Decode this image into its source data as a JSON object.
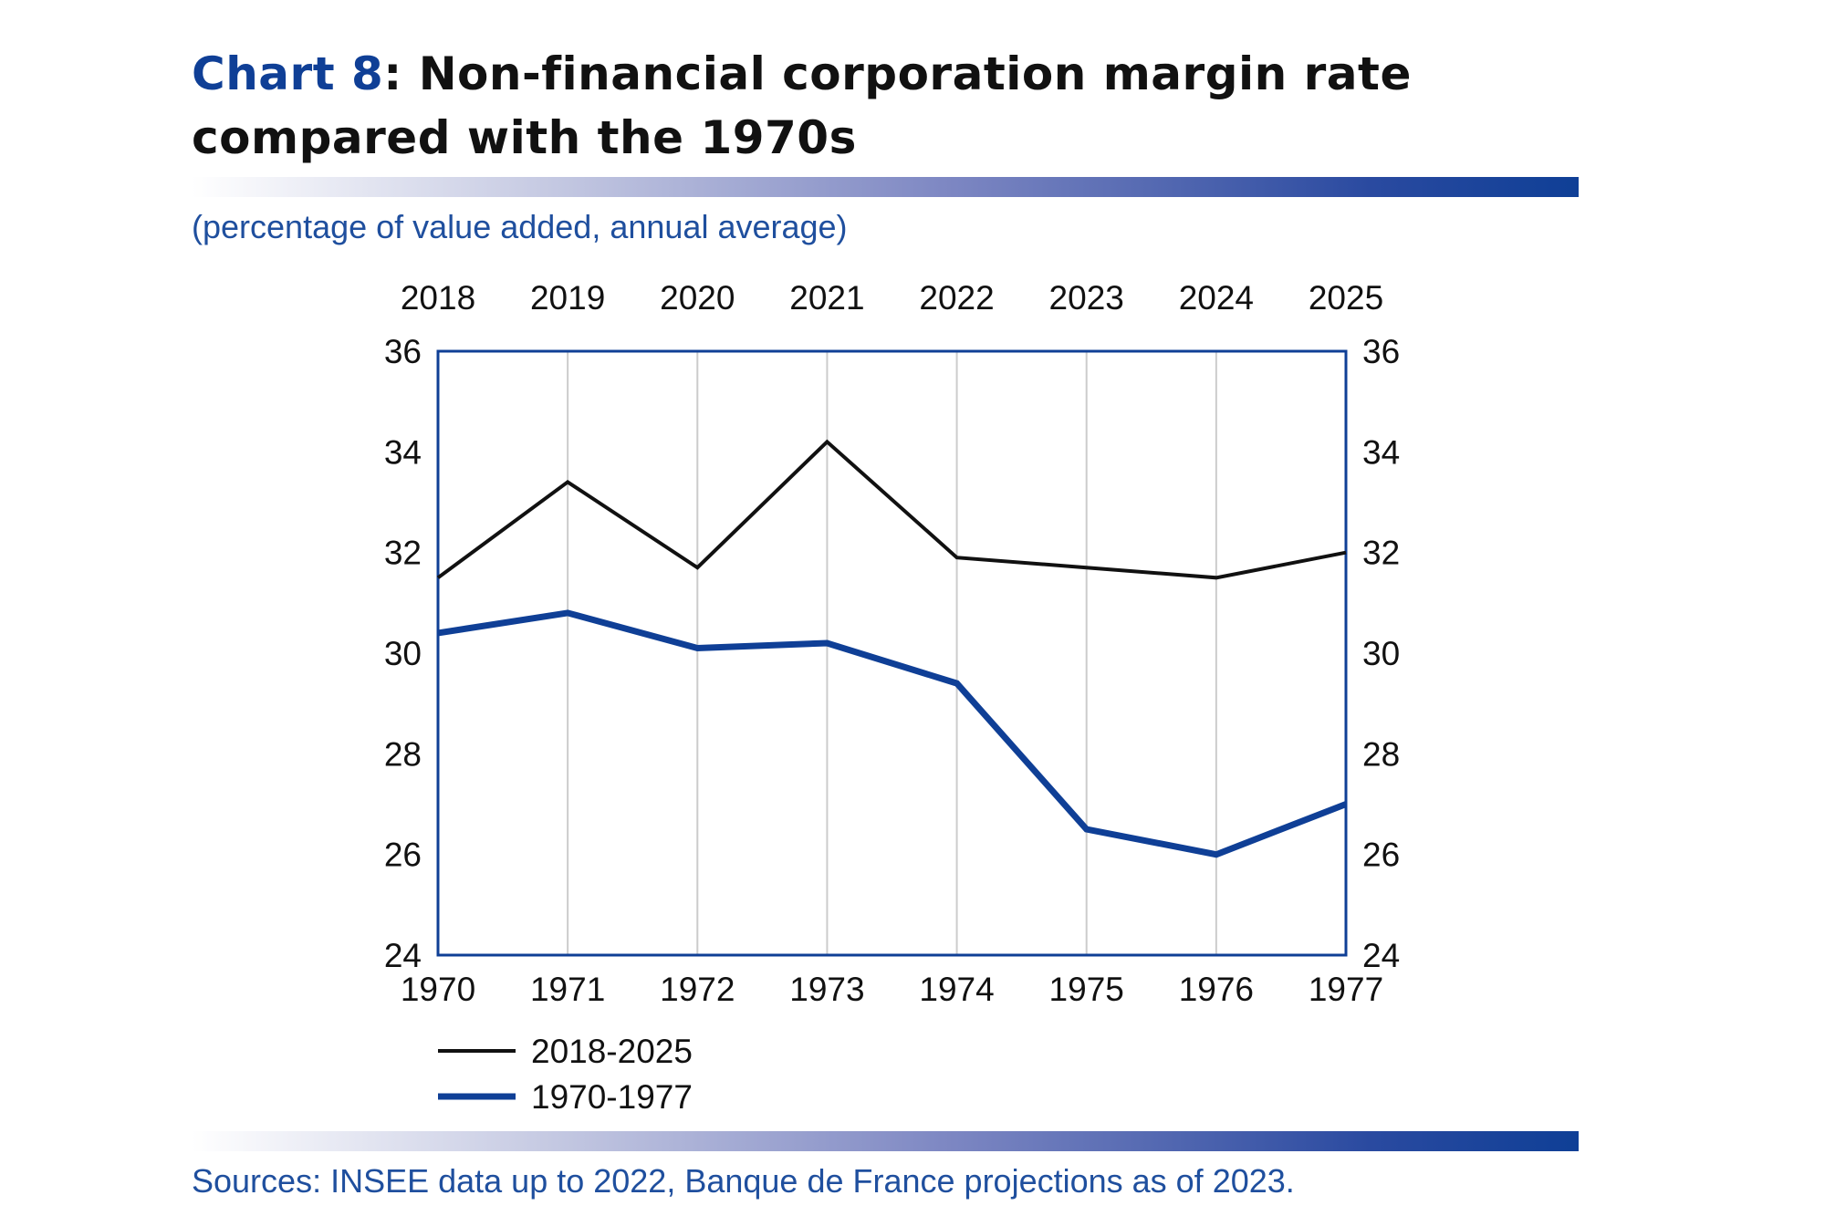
{
  "title": {
    "prefix": "Chart 8",
    "text": ": Non-financial corporation margin rate compared with the 1970s"
  },
  "subtitle": "(percentage of value added, annual average)",
  "source": "Sources: INSEE data up to 2022, Banque de France projections as of 2023.",
  "colors": {
    "accent": "#0f3f96",
    "series_recent": "#111111",
    "series_1970s": "#0f3f96",
    "text_blue": "#1f4f9e"
  },
  "chart_data": {
    "type": "line",
    "x_bottom": [
      "1970",
      "1971",
      "1972",
      "1973",
      "1974",
      "1975",
      "1976",
      "1977"
    ],
    "x_top": [
      "2018",
      "2019",
      "2020",
      "2021",
      "2022",
      "2023",
      "2024",
      "2025"
    ],
    "y_ticks": [
      "24",
      "26",
      "28",
      "30",
      "32",
      "34",
      "36"
    ],
    "ylim": [
      24,
      36
    ],
    "y_axes": "left and right",
    "grid": "vertical",
    "legend_placement": "bottom-left",
    "series": [
      {
        "name": "2018-2025",
        "axis": "top",
        "color": "#111111",
        "values": [
          31.5,
          33.4,
          31.7,
          34.2,
          31.9,
          31.7,
          31.5,
          32.0
        ]
      },
      {
        "name": "1970-1977",
        "axis": "bottom",
        "color": "#0f3f96",
        "values": [
          30.4,
          30.8,
          30.1,
          30.2,
          29.4,
          26.5,
          26.0,
          27.0
        ]
      }
    ]
  }
}
